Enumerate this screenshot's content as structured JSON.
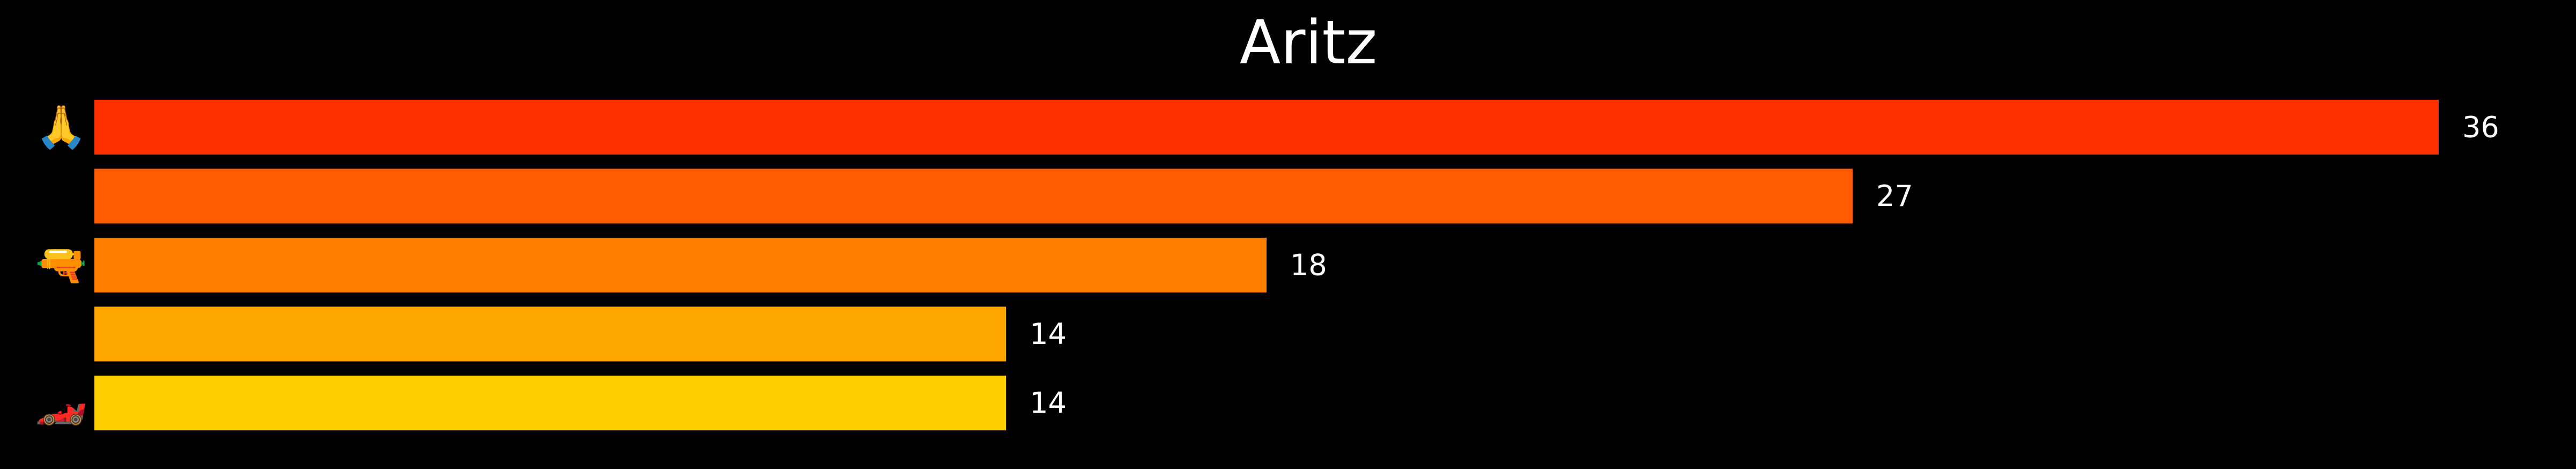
{
  "chart_data": {
    "type": "bar",
    "orientation": "horizontal",
    "title": "Aritz",
    "xlabel": "",
    "ylabel": "",
    "categories": [
      "🙏",
      "😔",
      "🔫",
      "😫",
      "🏎️"
    ],
    "values": [
      36,
      27,
      18,
      14,
      14
    ],
    "colors": [
      "#ff3000",
      "#ff5a00",
      "#ff7e00",
      "#ffa600",
      "#ffcf00"
    ],
    "xlim": [
      0,
      36
    ],
    "grid": false,
    "legend": "none"
  },
  "colors": {
    "background": "#000000",
    "text": "#ffffff"
  }
}
